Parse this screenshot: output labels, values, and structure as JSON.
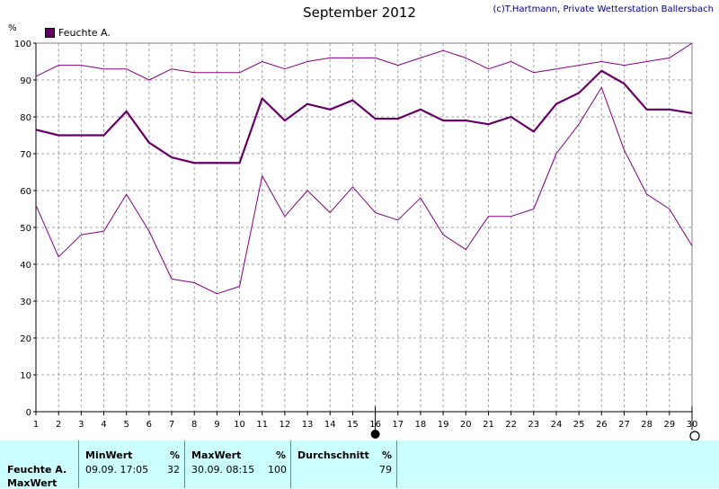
{
  "header": {
    "title": "September 2012",
    "credit": "(c)T.Hartmann, Private Wetterstation Ballersbach",
    "unit": "%"
  },
  "legend": {
    "label": "Feuchte A."
  },
  "chart_data": {
    "type": "line",
    "title": "September 2012",
    "x": [
      1,
      2,
      3,
      4,
      5,
      6,
      7,
      8,
      9,
      10,
      11,
      12,
      13,
      14,
      15,
      16,
      17,
      18,
      19,
      20,
      21,
      22,
      23,
      24,
      25,
      26,
      27,
      28,
      29,
      30
    ],
    "ylim": [
      0,
      100
    ],
    "y_ticks": [
      0,
      10,
      20,
      30,
      40,
      50,
      60,
      70,
      80,
      90,
      100
    ],
    "grid": true,
    "legend_position": "top-left",
    "series": [
      {
        "name": "Feuchte A.",
        "role": "avg",
        "color": "#660066",
        "values": [
          76.5,
          75,
          75,
          75,
          81.5,
          73,
          69,
          67.5,
          67.5,
          67.5,
          85,
          79,
          83.5,
          82,
          84.5,
          79.5,
          79.5,
          82,
          79,
          79,
          78,
          80,
          76,
          83.5,
          86.5,
          92.5,
          89,
          82,
          82,
          81
        ]
      },
      {
        "role": "max",
        "color": "#800080",
        "values": [
          91,
          94,
          94,
          93,
          93,
          90,
          93,
          92,
          92,
          92,
          95,
          93,
          95,
          96,
          96,
          96,
          94,
          96,
          98,
          96,
          93,
          95,
          92,
          93,
          94,
          95,
          94,
          95,
          96,
          100
        ]
      },
      {
        "role": "min",
        "color": "#800080",
        "values": [
          56,
          42,
          48,
          49,
          59,
          49,
          36,
          35,
          32,
          34,
          64,
          53,
          60,
          54,
          61,
          54,
          52,
          58,
          48,
          44,
          53,
          53,
          55,
          70,
          78,
          88,
          71,
          59,
          55,
          45
        ]
      }
    ]
  },
  "stats": {
    "row_label": "Feuchte A.",
    "row_label_2": "MaxWert",
    "min_header": "MinWert",
    "min_unit": "%",
    "min_time": "09.09.  17:05",
    "min_value": "32",
    "max_header": "MaxWert",
    "max_unit": "%",
    "max_time": "30.09.  08:15",
    "max_value": "100",
    "avg_header": "Durchschnitt",
    "avg_unit": "%",
    "avg_value": "79"
  }
}
